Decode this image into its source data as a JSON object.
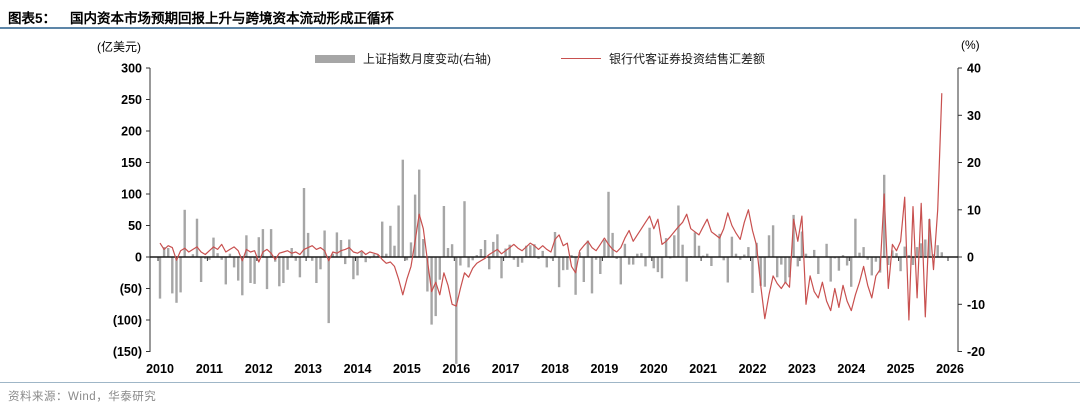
{
  "header": {
    "figure_label": "图表5：",
    "title": "国内资本市场预期回报上升与跨境资本流动形成正循环"
  },
  "footer": {
    "source": "资料来源：Wind，华泰研究"
  },
  "colors": {
    "bar": "#a6a6a6",
    "line": "#c8504f",
    "axis": "#333333",
    "zero_line": "#1a1a1a",
    "title_rule": "#5d86a8",
    "footer_rule": "#9fb6c7",
    "source_text": "#8a8a8a"
  },
  "chart_data": {
    "type": "bar",
    "subtype": "bar+line combo, monthly time series",
    "start_month": "2010-01",
    "end_month": "2025-11",
    "grid": "off",
    "legend_position": "top-center",
    "x_years": [
      "2010",
      "2011",
      "2012",
      "2013",
      "2014",
      "2015",
      "2016",
      "2017",
      "2018",
      "2019",
      "2020",
      "2021",
      "2022",
      "2023",
      "2024",
      "2025",
      "2026"
    ],
    "left_axis": {
      "unit": "(亿美元)",
      "min": -150,
      "max": 300,
      "ticks": [
        {
          "v": 300,
          "label": "300"
        },
        {
          "v": 250,
          "label": "250"
        },
        {
          "v": 200,
          "label": "200"
        },
        {
          "v": 150,
          "label": "150"
        },
        {
          "v": 100,
          "label": "100"
        },
        {
          "v": 50,
          "label": "50"
        },
        {
          "v": 0,
          "label": "0"
        },
        {
          "v": -50,
          "label": "(50)"
        },
        {
          "v": -100,
          "label": "(100)"
        },
        {
          "v": -150,
          "label": "(150)"
        }
      ]
    },
    "right_axis": {
      "unit": "(%)",
      "min": -20,
      "max": 40,
      "ticks": [
        {
          "v": 40,
          "label": "40"
        },
        {
          "v": 30,
          "label": "30"
        },
        {
          "v": 20,
          "label": "20"
        },
        {
          "v": 10,
          "label": "10"
        },
        {
          "v": 0,
          "label": "0"
        },
        {
          "v": -10,
          "label": "-10"
        },
        {
          "v": -20,
          "label": "-20"
        }
      ]
    },
    "series": [
      {
        "name": "上证指数月度变动(右轴)",
        "type": "bar",
        "axis": "right",
        "color": "#a6a6a6",
        "values": [
          -8.8,
          2.1,
          1.9,
          -7.7,
          -9.7,
          -7.5,
          10.0,
          0.0,
          0.6,
          8.1,
          -5.3,
          -0.4,
          -0.6,
          4.1,
          0.8,
          -0.6,
          -5.8,
          0.7,
          -2.2,
          -5.0,
          -8.1,
          4.6,
          -5.5,
          -5.7,
          4.2,
          5.9,
          -6.8,
          5.9,
          -1.0,
          -6.2,
          -5.5,
          -2.7,
          1.9,
          -0.8,
          -4.3,
          14.6,
          5.1,
          -0.8,
          -5.5,
          -2.6,
          5.6,
          -14.0,
          0.7,
          5.2,
          3.6,
          -1.5,
          3.7,
          -4.7,
          -3.9,
          1.1,
          -1.1,
          -0.3,
          0.6,
          0.4,
          7.5,
          0.7,
          6.6,
          2.4,
          10.9,
          20.6,
          -0.7,
          3.1,
          13.2,
          18.5,
          3.8,
          -7.3,
          -14.3,
          -12.5,
          -4.8,
          10.8,
          1.9,
          2.7,
          -22.6,
          -1.8,
          11.8,
          -2.2,
          -0.7,
          0.4,
          1.7,
          3.6,
          -2.6,
          3.2,
          4.8,
          -4.5,
          1.8,
          2.6,
          -0.6,
          -2.1,
          -1.2,
          2.4,
          2.5,
          2.7,
          -0.4,
          1.3,
          -2.2,
          -0.3,
          5.3,
          -6.4,
          -2.8,
          -2.7,
          0.4,
          -8.0,
          1.0,
          -5.3,
          3.5,
          -7.7,
          -0.6,
          -3.6,
          3.6,
          13.8,
          5.1,
          -0.4,
          -5.8,
          2.8,
          -1.6,
          -1.6,
          0.7,
          0.8,
          -2.0,
          6.2,
          -2.4,
          -3.2,
          -4.5,
          4.0,
          -0.3,
          4.6,
          10.9,
          2.6,
          -5.2,
          0.2,
          5.2,
          2.4,
          0.3,
          0.7,
          -1.9,
          0.1,
          4.9,
          -0.7,
          -5.4,
          4.3,
          0.7,
          -0.6,
          0.5,
          2.1,
          -7.6,
          3.0,
          -6.1,
          -6.3,
          4.6,
          6.7,
          -4.3,
          -1.6,
          -5.5,
          -4.3,
          8.9,
          -2.0,
          5.4,
          0.7,
          -0.2,
          1.5,
          -3.6,
          -0.1,
          2.8,
          -5.2,
          -0.3,
          -2.9,
          0.4,
          -1.8,
          -6.3,
          8.1,
          0.9,
          2.1,
          -0.6,
          -3.9,
          -1.0,
          -3.3,
          17.4,
          -1.7,
          1.4,
          0.8,
          -3.0,
          2.2,
          0.4,
          -1.7,
          2.1,
          2.9,
          3.7,
          8.0,
          0.6,
          2.5,
          1.0
        ]
      },
      {
        "name": "银行代客证券投资结售汇差额",
        "type": "line",
        "axis": "left",
        "color": "#c8504f",
        "values": [
          22,
          12,
          18,
          15,
          -5,
          10,
          14,
          8,
          12,
          16,
          8,
          4,
          10,
          16,
          12,
          20,
          8,
          12,
          16,
          10,
          -6,
          12,
          8,
          10,
          -8,
          8,
          12,
          6,
          -4,
          6,
          8,
          10,
          6,
          8,
          4,
          12,
          15,
          18,
          12,
          15,
          10,
          -6,
          8,
          6,
          10,
          12,
          15,
          8,
          6,
          10,
          4,
          8,
          6,
          4,
          -4,
          -10,
          -8,
          -15,
          -35,
          -60,
          -35,
          -15,
          25,
          68,
          45,
          -5,
          -55,
          -40,
          -60,
          -25,
          -45,
          -75,
          -78,
          -50,
          -25,
          -32,
          -18,
          -10,
          -6,
          -2,
          4,
          8,
          12,
          5,
          10,
          15,
          20,
          14,
          10,
          16,
          22,
          18,
          12,
          18,
          12,
          8,
          28,
          35,
          18,
          22,
          -15,
          -25,
          10,
          18,
          25,
          15,
          10,
          20,
          30,
          20,
          12,
          8,
          15,
          30,
          42,
          25,
          35,
          45,
          55,
          65,
          45,
          60,
          20,
          25,
          32,
          40,
          48,
          55,
          68,
          45,
          40,
          35,
          48,
          60,
          40,
          35,
          30,
          45,
          70,
          50,
          38,
          28,
          55,
          75,
          42,
          18,
          -45,
          -98,
          -60,
          -30,
          -42,
          -50,
          -40,
          -48,
          60,
          25,
          65,
          -75,
          -30,
          -55,
          -65,
          -40,
          -70,
          -85,
          -50,
          -80,
          -45,
          -70,
          -85,
          -60,
          -40,
          -15,
          -45,
          -65,
          -30,
          -20,
          100,
          -50,
          20,
          10,
          25,
          95,
          -100,
          80,
          -65,
          85,
          -95,
          60,
          -20,
          75,
          260
        ]
      }
    ]
  }
}
